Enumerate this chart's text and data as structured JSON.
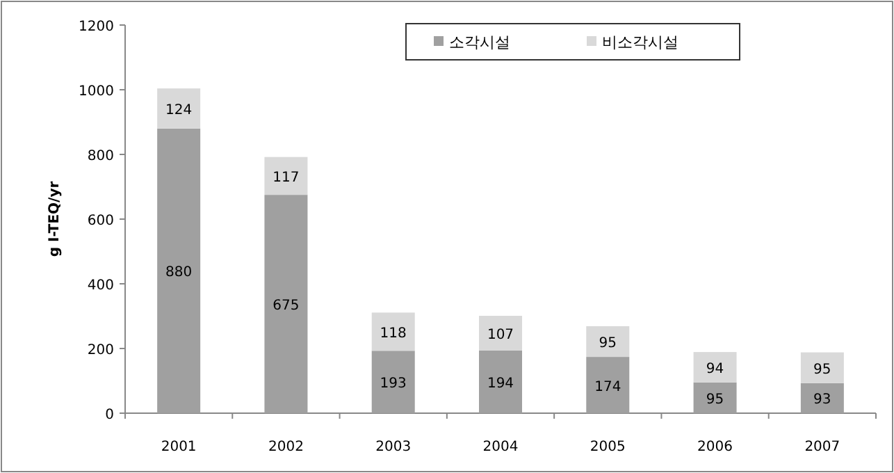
{
  "chart_data": {
    "type": "bar",
    "stacked": true,
    "ylabel": "g I-TEQ/yr",
    "categories": [
      "2001",
      "2002",
      "2003",
      "2004",
      "2005",
      "2006",
      "2007"
    ],
    "series": [
      {
        "name": "소각시설",
        "color": "#a0a0a0",
        "values": [
          880,
          675,
          193,
          194,
          174,
          95,
          93
        ]
      },
      {
        "name": "비소각시설",
        "color": "#d9d9d9",
        "values": [
          124,
          117,
          118,
          107,
          95,
          94,
          95
        ]
      }
    ],
    "ylim": [
      0,
      1200
    ],
    "yticks": [
      0,
      200,
      400,
      600,
      800,
      1000,
      1200
    ],
    "data_labels": true,
    "legend": "top right",
    "grid": false
  }
}
